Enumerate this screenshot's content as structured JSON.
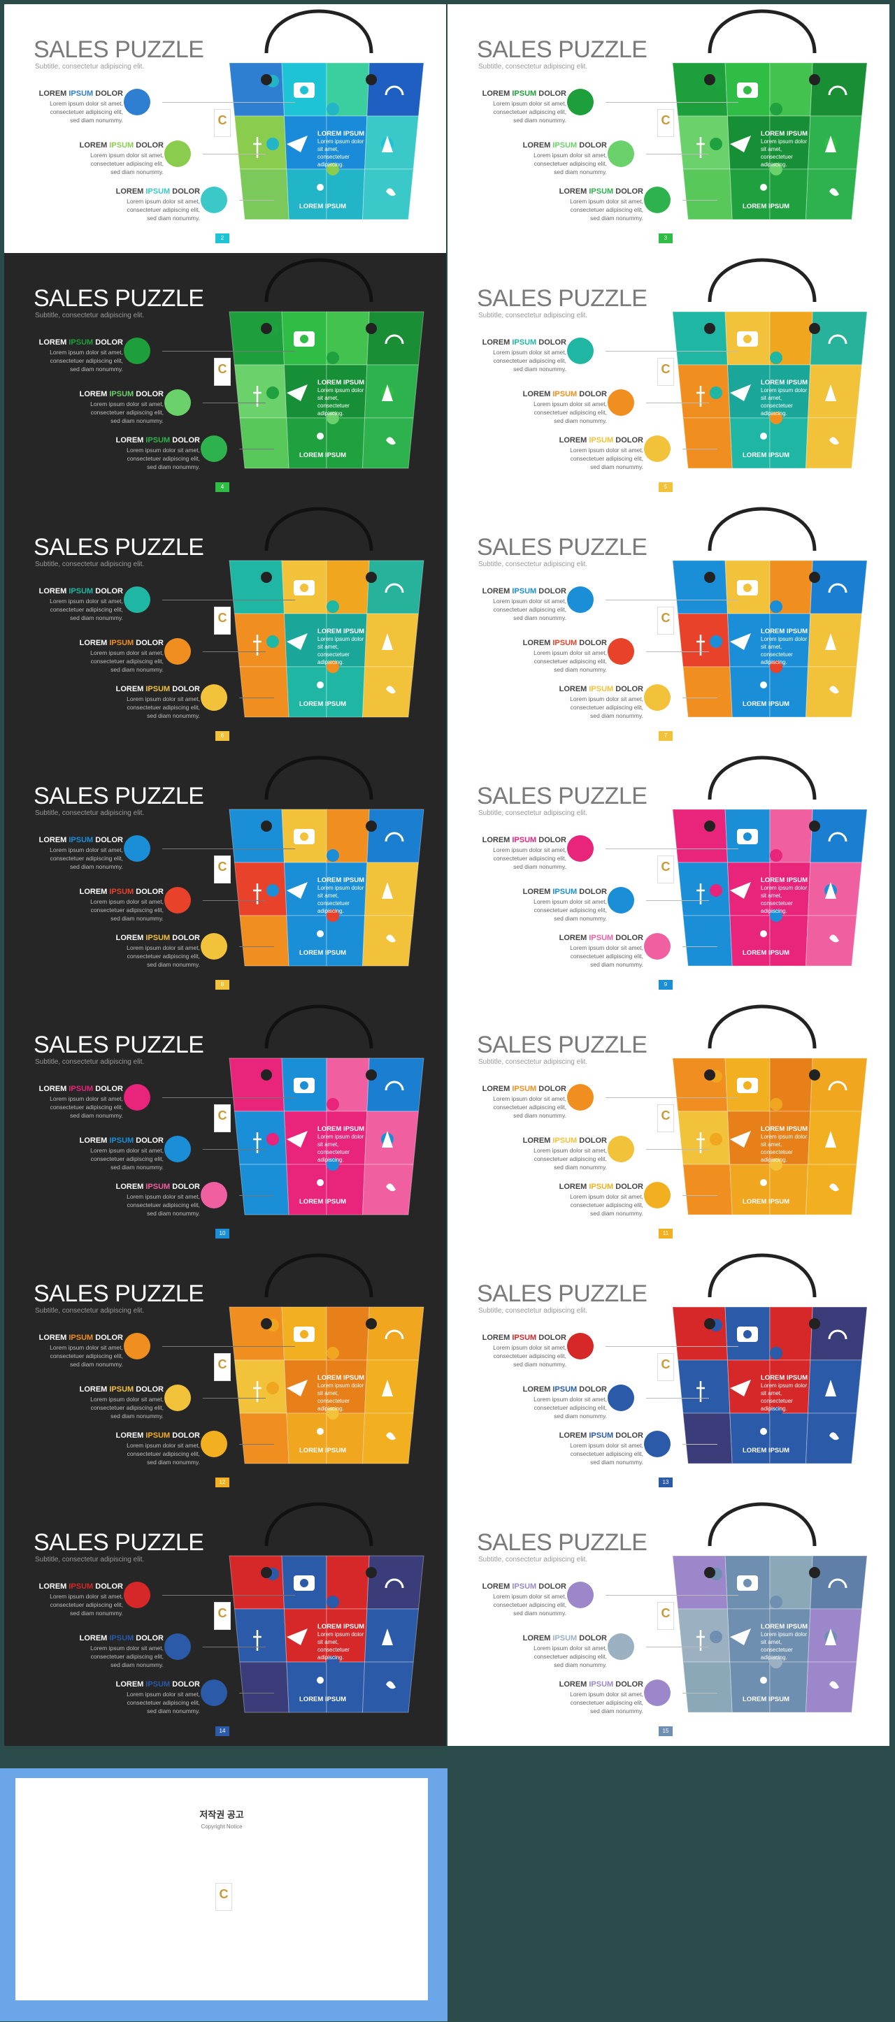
{
  "slide_title": "SALES PUZZLE",
  "slide_subtitle": "Subtitle, consectetur adipiscing elit.",
  "row_prefix": "LOREM ",
  "row_accent": "IPSUM",
  "row_suffix": " DOLOR",
  "row_body": [
    "Lorem ipsum dolor sit amet,",
    "consectetuer adipiscing elit,",
    "sed diam nonummy."
  ],
  "center_title": "LOREM IPSUM",
  "center_body": [
    "Lorem ipsum dolor",
    "sit amet,",
    "consectetuer",
    "adipiscing."
  ],
  "bottom_label": "LOREM IPSUM",
  "logo_letter": "C",
  "slides": [
    {
      "page": "2",
      "theme": "light",
      "c": [
        "#2e7fd1",
        "#1ec4d6",
        "#3bcfa0",
        "#1f5fc2",
        "#8acd4e",
        "#1a8bd8",
        "#3bc8c8",
        "#7bc95a",
        "#22b5c7"
      ]
    },
    {
      "page": "3",
      "theme": "light",
      "c": [
        "#1d9f3b",
        "#2fbd46",
        "#43c24f",
        "#1a8e35",
        "#6bd16b",
        "#178f37",
        "#2eb24d",
        "#58c85a",
        "#1fa13f"
      ]
    },
    {
      "page": "4",
      "theme": "dark",
      "c": [
        "#1d9f3b",
        "#2fbd46",
        "#43c24f",
        "#1a8e35",
        "#6bd16b",
        "#178f37",
        "#2eb24d",
        "#58c85a",
        "#1fa13f"
      ]
    },
    {
      "page": "5",
      "theme": "light",
      "c": [
        "#1fb7a4",
        "#f2c23a",
        "#f0a61e",
        "#27b39b",
        "#f08f20",
        "#1aa79a",
        "#f2c23a",
        "#f08f20",
        "#1fb7a4"
      ]
    },
    {
      "page": "6",
      "theme": "dark",
      "c": [
        "#1fb7a4",
        "#f2c23a",
        "#f0a61e",
        "#27b39b",
        "#f08f20",
        "#1aa79a",
        "#f2c23a",
        "#f08f20",
        "#1fb7a4"
      ]
    },
    {
      "page": "7",
      "theme": "light",
      "c": [
        "#1a8fd8",
        "#f2c23a",
        "#f08f20",
        "#1a7fd0",
        "#e8422a",
        "#1a8fd8",
        "#f2c23a",
        "#f08f20",
        "#1a8fd8"
      ]
    },
    {
      "page": "8",
      "theme": "dark",
      "c": [
        "#1a8fd8",
        "#f2c23a",
        "#f08f20",
        "#1a7fd0",
        "#e8422a",
        "#1a8fd8",
        "#f2c23a",
        "#f08f20",
        "#1a8fd8"
      ]
    },
    {
      "page": "9",
      "theme": "light",
      "c": [
        "#e8257a",
        "#1a8fd8",
        "#f05fa0",
        "#1a7fd0",
        "#1a8fd8",
        "#e8257a",
        "#f05fa0",
        "#1a8fd8",
        "#e8257a"
      ]
    },
    {
      "page": "10",
      "theme": "dark",
      "c": [
        "#e8257a",
        "#1a8fd8",
        "#f05fa0",
        "#1a7fd0",
        "#1a8fd8",
        "#e8257a",
        "#f05fa0",
        "#1a8fd8",
        "#e8257a"
      ]
    },
    {
      "page": "11",
      "theme": "light",
      "c": [
        "#f08f20",
        "#f2b020",
        "#e8801a",
        "#f0a61e",
        "#f2c23a",
        "#e8801a",
        "#f2b020",
        "#f08f20",
        "#f0a61e"
      ]
    },
    {
      "page": "12",
      "theme": "dark",
      "c": [
        "#f08f20",
        "#f2b020",
        "#e8801a",
        "#f0a61e",
        "#f2c23a",
        "#e8801a",
        "#f2b020",
        "#f08f20",
        "#f0a61e"
      ]
    },
    {
      "page": "13",
      "theme": "light",
      "c": [
        "#d62828",
        "#2a5aa8",
        "#d62828",
        "#3a3d7a",
        "#2a5aa8",
        "#d62828",
        "#2a5aa8",
        "#3a3d7a",
        "#2a5aa8"
      ]
    },
    {
      "page": "14",
      "theme": "dark",
      "c": [
        "#d62828",
        "#2a5aa8",
        "#d62828",
        "#3a3d7a",
        "#2a5aa8",
        "#d62828",
        "#2a5aa8",
        "#3a3d7a",
        "#2a5aa8"
      ]
    },
    {
      "page": "15",
      "theme": "light",
      "c": [
        "#9b87c9",
        "#6f8fb0",
        "#8aa8b8",
        "#5f7fa8",
        "#9bb0c0",
        "#6f8fb0",
        "#9b87c9",
        "#8aa8b8",
        "#6f8fb0"
      ]
    }
  ],
  "copyright": {
    "title": "저작권 공고",
    "subtitle": "Copyright Notice",
    "paragraphs": [
      "",
      "",
      "",
      "",
      ""
    ]
  }
}
